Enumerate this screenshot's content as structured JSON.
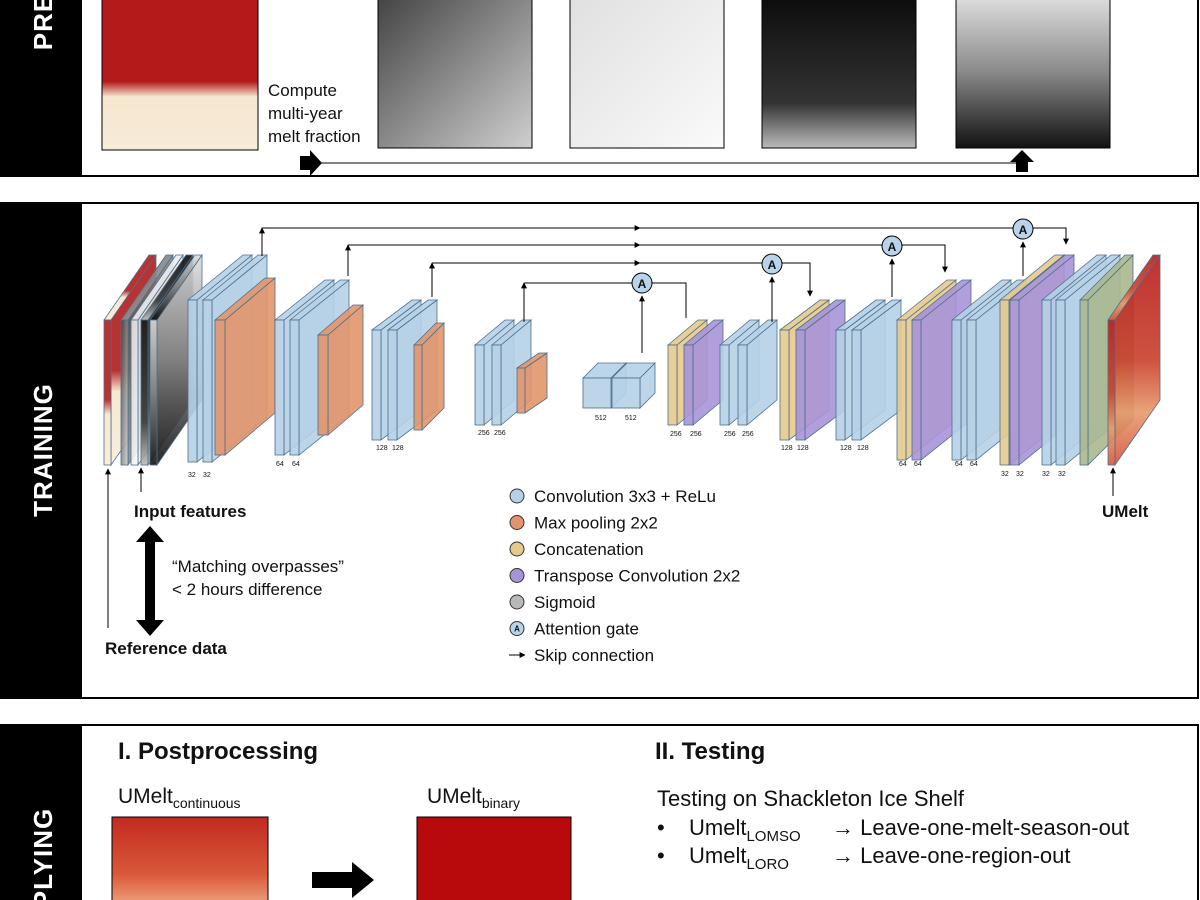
{
  "sections": {
    "preprocessing": "PRE",
    "training": "TRAINING",
    "applying": "PLYING"
  },
  "preprocessing": {
    "step_label": [
      "Compute",
      "multi-year",
      "melt fraction"
    ]
  },
  "training": {
    "block_sizes": [
      [
        32,
        32
      ],
      [
        64,
        64
      ],
      [
        128,
        128
      ],
      [
        256,
        256
      ],
      [
        512,
        512
      ],
      [
        256,
        256
      ],
      [
        256,
        256
      ],
      [
        128,
        128
      ],
      [
        128,
        128
      ],
      [
        64,
        64
      ],
      [
        64,
        64
      ],
      [
        32,
        32
      ],
      [
        32,
        32
      ]
    ],
    "attention_gate_symbol": "A",
    "input_label": "Input features",
    "output_label": "UMelt",
    "matching_label": [
      "“Matching overpasses”",
      "< 2 hours difference"
    ],
    "reference_label": "Reference data",
    "legend": [
      "Convolution 3x3 + ReLu",
      "Max pooling 2x2",
      "Concatenation",
      "Transpose Convolution 2x2",
      "Sigmoid",
      "Attention gate",
      "Skip connection"
    ]
  },
  "applying": {
    "postprocessing_title": "I. Postprocessing",
    "testing_title": "II. Testing",
    "continuous_label": {
      "main": "UMelt",
      "sub": "continuous"
    },
    "binary_label": {
      "main": "UMelt",
      "sub": "binary"
    },
    "testing_intro": "Testing on Shackleton Ice Shelf",
    "bullets": [
      {
        "marker": "•",
        "main": "Umelt",
        "sub": "LOMSO",
        "text": "→ Leave-one-melt-season-out"
      },
      {
        "marker": "•",
        "main": "Umelt",
        "sub": "LORO",
        "text": "→ Leave-one-region-out"
      }
    ]
  }
}
